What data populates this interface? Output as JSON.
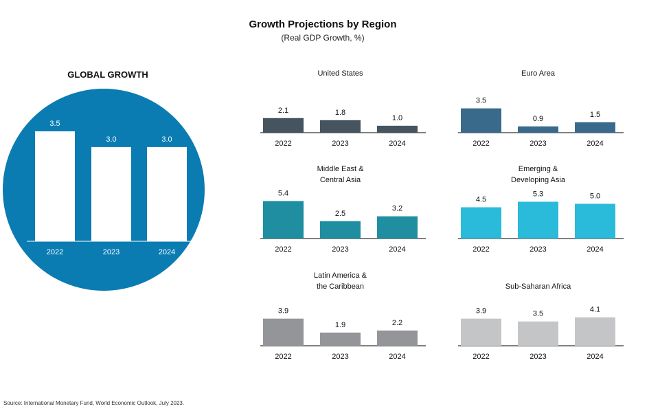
{
  "title": "Growth Projections by Region",
  "subtitle": "(Real GDP Growth, %)",
  "source": "Source: International Monetary Fund, World Economic Outlook, July 2023.",
  "chart_data": [
    {
      "type": "bar",
      "title": "GLOBAL GROWTH",
      "categories": [
        "2022",
        "2023",
        "2024"
      ],
      "values": [
        3.5,
        3.0,
        3.0
      ],
      "color": "#ffffff",
      "background_color": "#0a7cb2"
    },
    {
      "type": "bar",
      "title": "United States",
      "categories": [
        "2022",
        "2023",
        "2024"
      ],
      "values": [
        2.1,
        1.8,
        1.0
      ],
      "color": "#45545f"
    },
    {
      "type": "bar",
      "title": "Euro Area",
      "categories": [
        "2022",
        "2023",
        "2024"
      ],
      "values": [
        3.5,
        0.9,
        1.5
      ],
      "color": "#396a8c"
    },
    {
      "type": "bar",
      "title": "Middle East & Central Asia",
      "categories": [
        "2022",
        "2023",
        "2024"
      ],
      "values": [
        5.4,
        2.5,
        3.2
      ],
      "color": "#1f8ea0"
    },
    {
      "type": "bar",
      "title": "Emerging & Developing Asia",
      "categories": [
        "2022",
        "2023",
        "2024"
      ],
      "values": [
        4.5,
        5.3,
        5.0
      ],
      "color": "#29bbd9"
    },
    {
      "type": "bar",
      "title": "Latin America & the Caribbean",
      "categories": [
        "2022",
        "2023",
        "2024"
      ],
      "values": [
        3.9,
        1.9,
        2.2
      ],
      "color": "#939598"
    },
    {
      "type": "bar",
      "title": "Sub-Saharan Africa",
      "categories": [
        "2022",
        "2023",
        "2024"
      ],
      "values": [
        3.9,
        3.5,
        4.1
      ],
      "color": "#c4c5c7"
    }
  ]
}
